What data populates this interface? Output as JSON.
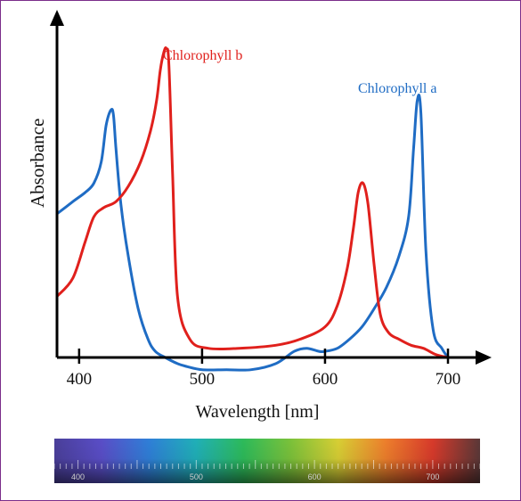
{
  "chart_data": {
    "type": "line",
    "title": "",
    "xlabel": "Wavelength [nm]",
    "ylabel": "Absorbance",
    "xlim": [
      382,
      740
    ],
    "ylim": [
      0,
      1.0
    ],
    "x_ticks": [
      400,
      500,
      600,
      700
    ],
    "grid": false,
    "legend": "inline labels near curves",
    "series": [
      {
        "name": "Chlorophyll a",
        "color": "#1f6cc4",
        "x": [
          382,
          395,
          405,
          412,
          418,
          422,
          426,
          428,
          430,
          434,
          440,
          448,
          456,
          462,
          470,
          480,
          488,
          500,
          520,
          540,
          560,
          575,
          585,
          595,
          600,
          610,
          620,
          630,
          640,
          650,
          660,
          668,
          672,
          675,
          678,
          682,
          688,
          695,
          700
        ],
        "y": [
          0.47,
          0.51,
          0.54,
          0.57,
          0.64,
          0.76,
          0.81,
          0.79,
          0.68,
          0.5,
          0.33,
          0.16,
          0.06,
          0.02,
          0.0,
          -0.02,
          -0.03,
          -0.04,
          -0.04,
          -0.04,
          -0.02,
          0.02,
          0.03,
          0.02,
          0.02,
          0.03,
          0.06,
          0.1,
          0.16,
          0.23,
          0.33,
          0.46,
          0.68,
          0.84,
          0.8,
          0.35,
          0.09,
          0.03,
          0.0
        ]
      },
      {
        "name": "Chlorophyll b",
        "color": "#e0201c",
        "x": [
          382,
          395,
          405,
          412,
          420,
          430,
          440,
          450,
          458,
          463,
          466,
          469,
          471,
          473,
          476,
          480,
          490,
          505,
          530,
          560,
          580,
          600,
          610,
          618,
          623,
          627,
          631,
          635,
          640,
          645,
          652,
          660,
          670,
          680,
          690,
          700
        ],
        "y": [
          0.2,
          0.26,
          0.38,
          0.46,
          0.49,
          0.51,
          0.56,
          0.64,
          0.74,
          0.84,
          0.94,
          1.0,
          1.01,
          0.96,
          0.6,
          0.2,
          0.06,
          0.03,
          0.03,
          0.04,
          0.06,
          0.1,
          0.17,
          0.29,
          0.42,
          0.54,
          0.57,
          0.5,
          0.3,
          0.14,
          0.08,
          0.06,
          0.04,
          0.03,
          0.01,
          0.0
        ]
      }
    ],
    "annotations": [
      "Chlorophyll b",
      "Chlorophyll a"
    ],
    "spectrum_bar": {
      "min": 380,
      "max": 740,
      "labels": [
        "400",
        "500",
        "600",
        "700"
      ],
      "colors": [
        "#4a3f9a",
        "#5a4ec8",
        "#2f7fd8",
        "#20b0b8",
        "#2dbb5a",
        "#7cc23a",
        "#d8cf34",
        "#ee7f2c",
        "#d83a2b",
        "#5a3838"
      ]
    }
  }
}
